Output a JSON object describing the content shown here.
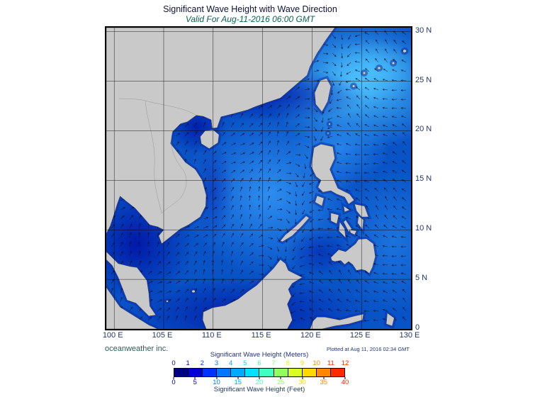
{
  "header": {
    "title": "Significant Wave Height with Wave Direction",
    "subtitle": "Valid For Aug-11-2016 06:00 GMT"
  },
  "map": {
    "lon_ticks": [
      "100 E",
      "105 E",
      "110 E",
      "115 E",
      "120 E",
      "125 E",
      "130 E"
    ],
    "lat_ticks": [
      "0",
      "5 N",
      "10 N",
      "15 N",
      "20 N",
      "25 N",
      "30 N"
    ]
  },
  "footer": {
    "credit": "oceanweather inc.",
    "plotted_at": "Plotted at Aug 11, 2016 02:34 GMT"
  },
  "colorbar": {
    "meters_label": "Significant Wave Height (Meters)",
    "feet_label": "Significant Wave Height (Feet)",
    "meters_ticks": [
      0,
      1,
      2,
      3,
      4,
      5,
      6,
      7,
      8,
      9,
      10,
      11,
      12
    ],
    "feet_ticks": [
      0,
      5,
      10,
      15,
      20,
      25,
      30,
      35,
      40
    ],
    "segment_colors": [
      "#000085",
      "#0000d6",
      "#0033ff",
      "#0077ff",
      "#00aaff",
      "#00e0ff",
      "#40ffc0",
      "#90ff60",
      "#d8ff20",
      "#ffd800",
      "#ff8800",
      "#ff2a00"
    ]
  },
  "map_colors": {
    "ocean_base": "#0853c6",
    "land": "#c9c9c9",
    "high_waves": "#4cc2ff",
    "low_waves": "#0016a6"
  }
}
